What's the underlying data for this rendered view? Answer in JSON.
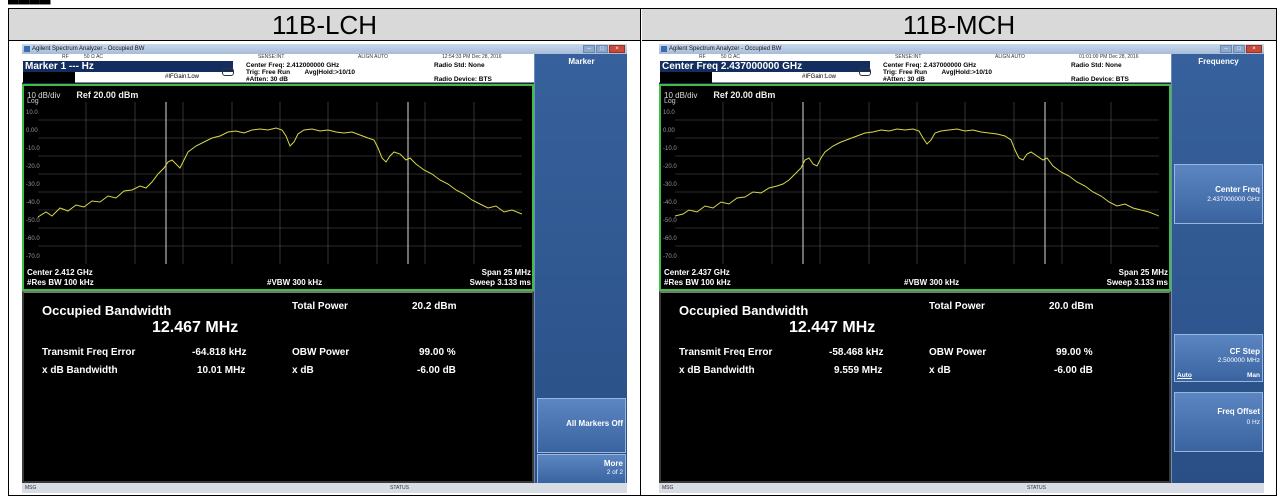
{
  "panels": [
    {
      "header": "11B-LCH",
      "window_title": "Agilent Spectrum Analyzer - Occupied BW",
      "status": {
        "rf": "RF",
        "ohm": "50 Ω  AC",
        "sense": "SENSE:INT",
        "align": "ALIGN AUTO",
        "time": "12:54:33 PM Dec 28, 2016"
      },
      "active_entry": "Marker 1 --- Hz",
      "ifgain": "#IFGain:Low",
      "center_freq_line": "Center Freq: 2.412000000 GHz",
      "trig_line": "Trig: Free Run",
      "avg_line": "Avg|Hold:>10/10",
      "atten_line": "#Atten: 30 dB",
      "radio_std": "Radio Std: None",
      "radio_device": "Radio Device: BTS",
      "scale": "10 dB/div",
      "ref": "Ref 20.00 dBm",
      "log": "Log",
      "y_ticks": [
        "10.0",
        "0.00",
        "-10.0",
        "-20.0",
        "-30.0",
        "-40.0",
        "-50.0",
        "-60.0",
        "-70.0"
      ],
      "center": "Center  2.412 GHz",
      "span": "Span 25 MHz",
      "res_bw": "#Res BW  100 kHz",
      "vbw": "#VBW  300 kHz",
      "sweep": "Sweep  3.133 ms",
      "meas": {
        "occ_bw_label": "Occupied Bandwidth",
        "occ_bw_value": "12.467 MHz",
        "total_power_label": "Total Power",
        "total_power_value": "20.2 dBm",
        "tx_freq_err_label": "Transmit Freq Error",
        "tx_freq_err_value": "-64.818 kHz",
        "obw_power_label": "OBW Power",
        "obw_power_value": "99.00 %",
        "xdb_bw_label": "x dB Bandwidth",
        "xdb_bw_value": "10.01 MHz",
        "xdb_label": "x dB",
        "xdb_value": "-6.00 dB"
      },
      "softkey_title": "Marker",
      "softkeys": [
        "All Markers Off",
        "More",
        "2 of 2"
      ],
      "bottom": {
        "msg": "MSG",
        "status": "STATUS"
      },
      "colors": {
        "trace": "#d8d84a",
        "graph_border": "#3fbf3f",
        "softkey_panel": "#2f5a94"
      }
    },
    {
      "header": "11B-MCH",
      "window_title": "Agilent Spectrum Analyzer - Occupied BW",
      "status": {
        "rf": "RF",
        "ohm": "50 Ω  AC",
        "sense": "SENSE:INT",
        "align": "ALIGN AUTO",
        "time": "01:01:00 PM Dec 28, 2016"
      },
      "active_entry": "Center Freq 2.437000000 GHz",
      "ifgain": "#IFGain:Low",
      "center_freq_line": "Center Freq: 2.437000000 GHz",
      "trig_line": "Trig: Free Run",
      "avg_line": "Avg|Hold:>10/10",
      "atten_line": "#Atten: 30 dB",
      "radio_std": "Radio Std: None",
      "radio_device": "Radio Device: BTS",
      "scale": "10 dB/div",
      "ref": "Ref 20.00 dBm",
      "log": "Log",
      "y_ticks": [
        "10.0",
        "0.00",
        "-10.0",
        "-20.0",
        "-30.0",
        "-40.0",
        "-50.0",
        "-60.0",
        "-70.0"
      ],
      "center": "Center  2.437 GHz",
      "span": "Span 25 MHz",
      "res_bw": "#Res BW  100 kHz",
      "vbw": "#VBW  300 kHz",
      "sweep": "Sweep  3.133 ms",
      "meas": {
        "occ_bw_label": "Occupied Bandwidth",
        "occ_bw_value": "12.447 MHz",
        "total_power_label": "Total Power",
        "total_power_value": "20.0 dBm",
        "tx_freq_err_label": "Transmit Freq Error",
        "tx_freq_err_value": "-58.468 kHz",
        "obw_power_label": "OBW Power",
        "obw_power_value": "99.00 %",
        "xdb_bw_label": "x dB Bandwidth",
        "xdb_bw_value": "9.559 MHz",
        "xdb_label": "x dB",
        "xdb_value": "-6.00 dB"
      },
      "softkey_title": "Frequency",
      "softkeys_freq": {
        "center_freq_label": "Center Freq",
        "center_freq_value": "2.437000000 GHz",
        "cf_step_label": "CF Step",
        "cf_step_value": "2.500000 MHz",
        "cf_step_auto": "Auto",
        "cf_step_man": "Man",
        "freq_offset_label": "Freq Offset",
        "freq_offset_value": "0 Hz"
      },
      "bottom": {
        "msg": "MSG",
        "status": "STATUS"
      },
      "colors": {
        "trace": "#d8d84a",
        "graph_border": "#3fbf3f",
        "softkey_panel": "#2f5a94"
      }
    }
  ]
}
